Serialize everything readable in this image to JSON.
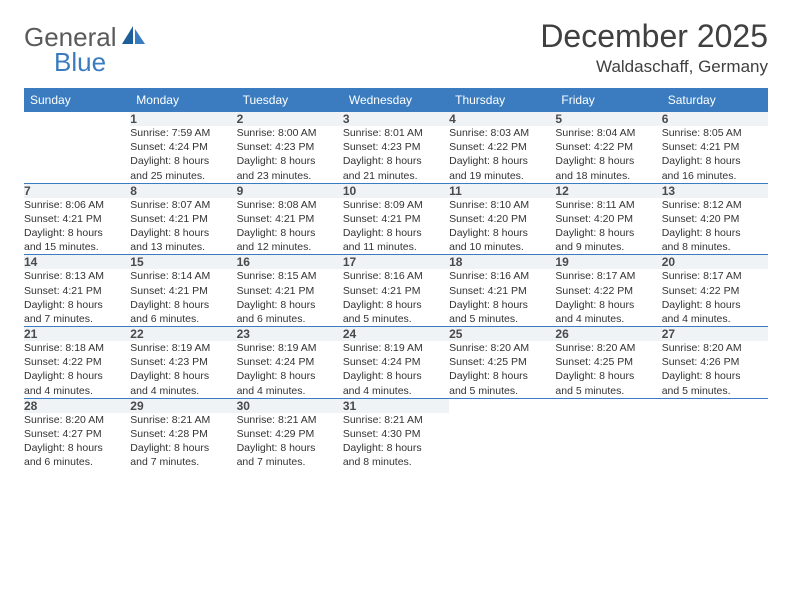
{
  "brand": {
    "text1": "General",
    "text2": "Blue"
  },
  "title": {
    "month": "December 2025",
    "location": "Waldaschaff, Germany"
  },
  "colors": {
    "header_bg": "#3a7cbf",
    "header_text": "#ffffff",
    "daynum_bg": "#eff3f6",
    "rule": "#3a7cbf",
    "body_text": "#333333",
    "brand_gray": "#5a5a5a",
    "brand_blue": "#3a7cbf"
  },
  "weekdays": [
    "Sunday",
    "Monday",
    "Tuesday",
    "Wednesday",
    "Thursday",
    "Friday",
    "Saturday"
  ],
  "weeks": [
    {
      "nums": [
        "",
        "1",
        "2",
        "3",
        "4",
        "5",
        "6"
      ],
      "cells": [
        null,
        {
          "sr": "Sunrise: 7:59 AM",
          "ss": "Sunset: 4:24 PM",
          "dl1": "Daylight: 8 hours",
          "dl2": "and 25 minutes."
        },
        {
          "sr": "Sunrise: 8:00 AM",
          "ss": "Sunset: 4:23 PM",
          "dl1": "Daylight: 8 hours",
          "dl2": "and 23 minutes."
        },
        {
          "sr": "Sunrise: 8:01 AM",
          "ss": "Sunset: 4:23 PM",
          "dl1": "Daylight: 8 hours",
          "dl2": "and 21 minutes."
        },
        {
          "sr": "Sunrise: 8:03 AM",
          "ss": "Sunset: 4:22 PM",
          "dl1": "Daylight: 8 hours",
          "dl2": "and 19 minutes."
        },
        {
          "sr": "Sunrise: 8:04 AM",
          "ss": "Sunset: 4:22 PM",
          "dl1": "Daylight: 8 hours",
          "dl2": "and 18 minutes."
        },
        {
          "sr": "Sunrise: 8:05 AM",
          "ss": "Sunset: 4:21 PM",
          "dl1": "Daylight: 8 hours",
          "dl2": "and 16 minutes."
        }
      ]
    },
    {
      "nums": [
        "7",
        "8",
        "9",
        "10",
        "11",
        "12",
        "13"
      ],
      "cells": [
        {
          "sr": "Sunrise: 8:06 AM",
          "ss": "Sunset: 4:21 PM",
          "dl1": "Daylight: 8 hours",
          "dl2": "and 15 minutes."
        },
        {
          "sr": "Sunrise: 8:07 AM",
          "ss": "Sunset: 4:21 PM",
          "dl1": "Daylight: 8 hours",
          "dl2": "and 13 minutes."
        },
        {
          "sr": "Sunrise: 8:08 AM",
          "ss": "Sunset: 4:21 PM",
          "dl1": "Daylight: 8 hours",
          "dl2": "and 12 minutes."
        },
        {
          "sr": "Sunrise: 8:09 AM",
          "ss": "Sunset: 4:21 PM",
          "dl1": "Daylight: 8 hours",
          "dl2": "and 11 minutes."
        },
        {
          "sr": "Sunrise: 8:10 AM",
          "ss": "Sunset: 4:20 PM",
          "dl1": "Daylight: 8 hours",
          "dl2": "and 10 minutes."
        },
        {
          "sr": "Sunrise: 8:11 AM",
          "ss": "Sunset: 4:20 PM",
          "dl1": "Daylight: 8 hours",
          "dl2": "and 9 minutes."
        },
        {
          "sr": "Sunrise: 8:12 AM",
          "ss": "Sunset: 4:20 PM",
          "dl1": "Daylight: 8 hours",
          "dl2": "and 8 minutes."
        }
      ]
    },
    {
      "nums": [
        "14",
        "15",
        "16",
        "17",
        "18",
        "19",
        "20"
      ],
      "cells": [
        {
          "sr": "Sunrise: 8:13 AM",
          "ss": "Sunset: 4:21 PM",
          "dl1": "Daylight: 8 hours",
          "dl2": "and 7 minutes."
        },
        {
          "sr": "Sunrise: 8:14 AM",
          "ss": "Sunset: 4:21 PM",
          "dl1": "Daylight: 8 hours",
          "dl2": "and 6 minutes."
        },
        {
          "sr": "Sunrise: 8:15 AM",
          "ss": "Sunset: 4:21 PM",
          "dl1": "Daylight: 8 hours",
          "dl2": "and 6 minutes."
        },
        {
          "sr": "Sunrise: 8:16 AM",
          "ss": "Sunset: 4:21 PM",
          "dl1": "Daylight: 8 hours",
          "dl2": "and 5 minutes."
        },
        {
          "sr": "Sunrise: 8:16 AM",
          "ss": "Sunset: 4:21 PM",
          "dl1": "Daylight: 8 hours",
          "dl2": "and 5 minutes."
        },
        {
          "sr": "Sunrise: 8:17 AM",
          "ss": "Sunset: 4:22 PM",
          "dl1": "Daylight: 8 hours",
          "dl2": "and 4 minutes."
        },
        {
          "sr": "Sunrise: 8:17 AM",
          "ss": "Sunset: 4:22 PM",
          "dl1": "Daylight: 8 hours",
          "dl2": "and 4 minutes."
        }
      ]
    },
    {
      "nums": [
        "21",
        "22",
        "23",
        "24",
        "25",
        "26",
        "27"
      ],
      "cells": [
        {
          "sr": "Sunrise: 8:18 AM",
          "ss": "Sunset: 4:22 PM",
          "dl1": "Daylight: 8 hours",
          "dl2": "and 4 minutes."
        },
        {
          "sr": "Sunrise: 8:19 AM",
          "ss": "Sunset: 4:23 PM",
          "dl1": "Daylight: 8 hours",
          "dl2": "and 4 minutes."
        },
        {
          "sr": "Sunrise: 8:19 AM",
          "ss": "Sunset: 4:24 PM",
          "dl1": "Daylight: 8 hours",
          "dl2": "and 4 minutes."
        },
        {
          "sr": "Sunrise: 8:19 AM",
          "ss": "Sunset: 4:24 PM",
          "dl1": "Daylight: 8 hours",
          "dl2": "and 4 minutes."
        },
        {
          "sr": "Sunrise: 8:20 AM",
          "ss": "Sunset: 4:25 PM",
          "dl1": "Daylight: 8 hours",
          "dl2": "and 5 minutes."
        },
        {
          "sr": "Sunrise: 8:20 AM",
          "ss": "Sunset: 4:25 PM",
          "dl1": "Daylight: 8 hours",
          "dl2": "and 5 minutes."
        },
        {
          "sr": "Sunrise: 8:20 AM",
          "ss": "Sunset: 4:26 PM",
          "dl1": "Daylight: 8 hours",
          "dl2": "and 5 minutes."
        }
      ]
    },
    {
      "nums": [
        "28",
        "29",
        "30",
        "31",
        "",
        "",
        ""
      ],
      "cells": [
        {
          "sr": "Sunrise: 8:20 AM",
          "ss": "Sunset: 4:27 PM",
          "dl1": "Daylight: 8 hours",
          "dl2": "and 6 minutes."
        },
        {
          "sr": "Sunrise: 8:21 AM",
          "ss": "Sunset: 4:28 PM",
          "dl1": "Daylight: 8 hours",
          "dl2": "and 7 minutes."
        },
        {
          "sr": "Sunrise: 8:21 AM",
          "ss": "Sunset: 4:29 PM",
          "dl1": "Daylight: 8 hours",
          "dl2": "and 7 minutes."
        },
        {
          "sr": "Sunrise: 8:21 AM",
          "ss": "Sunset: 4:30 PM",
          "dl1": "Daylight: 8 hours",
          "dl2": "and 8 minutes."
        },
        null,
        null,
        null
      ]
    }
  ]
}
